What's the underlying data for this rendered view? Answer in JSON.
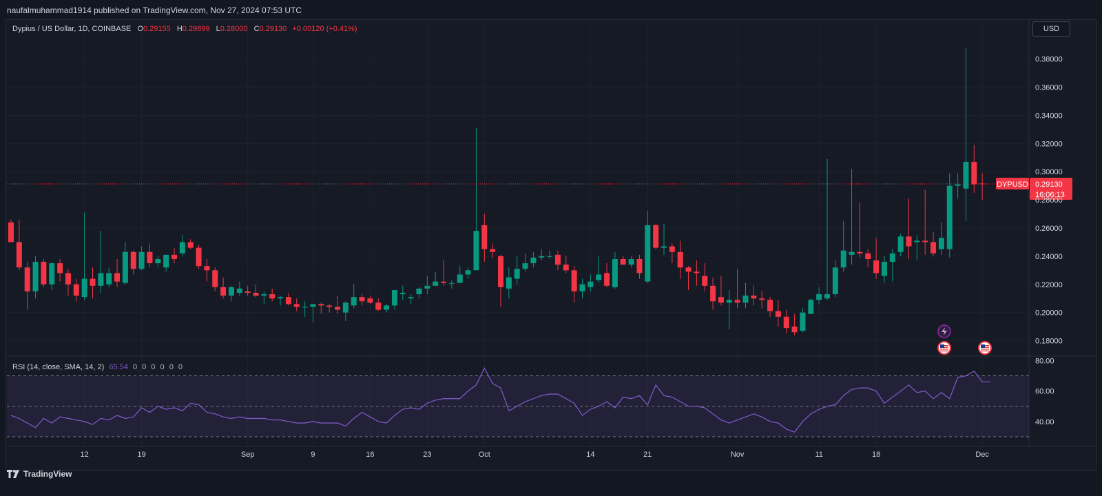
{
  "header": {
    "published": "naufalmuhammad1914 published on TradingView.com, Nov 27, 2024 07:53 UTC"
  },
  "legend": {
    "title": "Dypius / US Dollar, 1D, COINBASE",
    "o_label": "O",
    "o_value": "0.29155",
    "h_label": "H",
    "h_value": "0.29899",
    "l_label": "L",
    "l_value": "0.28000",
    "c_label": "C",
    "c_value": "0.29130",
    "change": "+0.00120 (+0.41%)"
  },
  "rsi_legend": {
    "title": "RSI (14, close, SMA, 14, 2)",
    "value": "65.54",
    "zeros": [
      "0",
      "0",
      "0",
      "0",
      "0",
      "0"
    ]
  },
  "currency_button": "USD",
  "price_tag": {
    "symbol": "DYPUSD",
    "price": "0.29130",
    "countdown": "16:06:13"
  },
  "footer": {
    "brand": "TradingView"
  },
  "colors": {
    "up": "#089981",
    "down": "#f23645",
    "rsi": "#7e57c2",
    "background": "#161a25"
  },
  "icons": [
    "lightning-icon",
    "us-flag-icon",
    "us-flag-icon"
  ],
  "chart_data": [
    {
      "type": "candlestick",
      "title": "Dypius / US Dollar, 1D, COINBASE",
      "ylim": [
        0.17,
        0.395
      ],
      "y_ticks": [
        "0.38000",
        "0.36000",
        "0.34000",
        "0.32000",
        "0.30000",
        "0.28000",
        "0.26000",
        "0.24000",
        "0.22000",
        "0.20000",
        "0.18000"
      ],
      "x_ticks": [
        {
          "label": "12",
          "index": 9
        },
        {
          "label": "19",
          "index": 16
        },
        {
          "label": "Sep",
          "index": 29
        },
        {
          "label": "9",
          "index": 37
        },
        {
          "label": "16",
          "index": 44
        },
        {
          "label": "23",
          "index": 51
        },
        {
          "label": "Oct",
          "index": 58
        },
        {
          "label": "14",
          "index": 71
        },
        {
          "label": "21",
          "index": 78
        },
        {
          "label": "Nov",
          "index": 89
        },
        {
          "label": "11",
          "index": 99
        },
        {
          "label": "18",
          "index": 106
        },
        {
          "label": "Dec",
          "index": 119
        }
      ],
      "last_price": 0.2913,
      "series": [
        {
          "o": 0.264,
          "h": 0.266,
          "l": 0.25,
          "c": 0.25
        },
        {
          "o": 0.25,
          "h": 0.266,
          "l": 0.23,
          "c": 0.232
        },
        {
          "o": 0.232,
          "h": 0.236,
          "l": 0.202,
          "c": 0.215
        },
        {
          "o": 0.215,
          "h": 0.24,
          "l": 0.21,
          "c": 0.236
        },
        {
          "o": 0.236,
          "h": 0.238,
          "l": 0.218,
          "c": 0.22
        },
        {
          "o": 0.22,
          "h": 0.236,
          "l": 0.216,
          "c": 0.235
        },
        {
          "o": 0.235,
          "h": 0.238,
          "l": 0.222,
          "c": 0.228
        },
        {
          "o": 0.228,
          "h": 0.231,
          "l": 0.212,
          "c": 0.22
        },
        {
          "o": 0.22,
          "h": 0.224,
          "l": 0.208,
          "c": 0.212
        },
        {
          "o": 0.211,
          "h": 0.271,
          "l": 0.209,
          "c": 0.224
        },
        {
          "o": 0.224,
          "h": 0.232,
          "l": 0.21,
          "c": 0.219
        },
        {
          "o": 0.219,
          "h": 0.258,
          "l": 0.214,
          "c": 0.228
        },
        {
          "o": 0.22,
          "h": 0.232,
          "l": 0.218,
          "c": 0.228
        },
        {
          "o": 0.228,
          "h": 0.238,
          "l": 0.218,
          "c": 0.222
        },
        {
          "o": 0.221,
          "h": 0.25,
          "l": 0.22,
          "c": 0.243
        },
        {
          "o": 0.243,
          "h": 0.244,
          "l": 0.227,
          "c": 0.231
        },
        {
          "o": 0.231,
          "h": 0.247,
          "l": 0.23,
          "c": 0.243
        },
        {
          "o": 0.243,
          "h": 0.249,
          "l": 0.232,
          "c": 0.235
        },
        {
          "o": 0.235,
          "h": 0.24,
          "l": 0.232,
          "c": 0.238
        },
        {
          "o": 0.232,
          "h": 0.241,
          "l": 0.229,
          "c": 0.241
        },
        {
          "o": 0.241,
          "h": 0.246,
          "l": 0.235,
          "c": 0.238
        },
        {
          "o": 0.242,
          "h": 0.255,
          "l": 0.24,
          "c": 0.25
        },
        {
          "o": 0.25,
          "h": 0.252,
          "l": 0.245,
          "c": 0.246
        },
        {
          "o": 0.246,
          "h": 0.248,
          "l": 0.231,
          "c": 0.233
        },
        {
          "o": 0.233,
          "h": 0.238,
          "l": 0.222,
          "c": 0.23
        },
        {
          "o": 0.23,
          "h": 0.232,
          "l": 0.215,
          "c": 0.218
        },
        {
          "o": 0.218,
          "h": 0.225,
          "l": 0.21,
          "c": 0.212
        },
        {
          "o": 0.212,
          "h": 0.219,
          "l": 0.208,
          "c": 0.218
        },
        {
          "o": 0.214,
          "h": 0.222,
          "l": 0.212,
          "c": 0.217
        },
        {
          "o": 0.215,
          "h": 0.219,
          "l": 0.212,
          "c": 0.214
        },
        {
          "o": 0.214,
          "h": 0.22,
          "l": 0.211,
          "c": 0.212
        },
        {
          "o": 0.212,
          "h": 0.215,
          "l": 0.206,
          "c": 0.213
        },
        {
          "o": 0.213,
          "h": 0.217,
          "l": 0.208,
          "c": 0.21
        },
        {
          "o": 0.21,
          "h": 0.212,
          "l": 0.205,
          "c": 0.211
        },
        {
          "o": 0.211,
          "h": 0.214,
          "l": 0.205,
          "c": 0.206
        },
        {
          "o": 0.206,
          "h": 0.21,
          "l": 0.201,
          "c": 0.204
        },
        {
          "o": 0.204,
          "h": 0.208,
          "l": 0.197,
          "c": 0.204
        },
        {
          "o": 0.204,
          "h": 0.206,
          "l": 0.193,
          "c": 0.206
        },
        {
          "o": 0.206,
          "h": 0.207,
          "l": 0.199,
          "c": 0.205
        },
        {
          "o": 0.205,
          "h": 0.206,
          "l": 0.2,
          "c": 0.204
        },
        {
          "o": 0.204,
          "h": 0.212,
          "l": 0.199,
          "c": 0.202
        },
        {
          "o": 0.2,
          "h": 0.208,
          "l": 0.194,
          "c": 0.207
        },
        {
          "o": 0.205,
          "h": 0.22,
          "l": 0.203,
          "c": 0.211
        },
        {
          "o": 0.211,
          "h": 0.213,
          "l": 0.205,
          "c": 0.208
        },
        {
          "o": 0.21,
          "h": 0.212,
          "l": 0.206,
          "c": 0.207
        },
        {
          "o": 0.207,
          "h": 0.21,
          "l": 0.201,
          "c": 0.202
        },
        {
          "o": 0.202,
          "h": 0.206,
          "l": 0.2,
          "c": 0.205
        },
        {
          "o": 0.205,
          "h": 0.216,
          "l": 0.202,
          "c": 0.216
        },
        {
          "o": 0.213,
          "h": 0.219,
          "l": 0.209,
          "c": 0.214
        },
        {
          "o": 0.21,
          "h": 0.213,
          "l": 0.206,
          "c": 0.211
        },
        {
          "o": 0.213,
          "h": 0.218,
          "l": 0.21,
          "c": 0.217
        },
        {
          "o": 0.217,
          "h": 0.226,
          "l": 0.213,
          "c": 0.219
        },
        {
          "o": 0.219,
          "h": 0.229,
          "l": 0.219,
          "c": 0.222
        },
        {
          "o": 0.222,
          "h": 0.237,
          "l": 0.219,
          "c": 0.221
        },
        {
          "o": 0.221,
          "h": 0.223,
          "l": 0.217,
          "c": 0.221
        },
        {
          "o": 0.221,
          "h": 0.233,
          "l": 0.221,
          "c": 0.227
        },
        {
          "o": 0.227,
          "h": 0.232,
          "l": 0.224,
          "c": 0.23
        },
        {
          "o": 0.23,
          "h": 0.331,
          "l": 0.23,
          "c": 0.258
        },
        {
          "o": 0.262,
          "h": 0.27,
          "l": 0.236,
          "c": 0.245
        },
        {
          "o": 0.245,
          "h": 0.249,
          "l": 0.239,
          "c": 0.243
        },
        {
          "o": 0.24,
          "h": 0.241,
          "l": 0.204,
          "c": 0.218
        },
        {
          "o": 0.217,
          "h": 0.232,
          "l": 0.21,
          "c": 0.225
        },
        {
          "o": 0.224,
          "h": 0.24,
          "l": 0.22,
          "c": 0.231
        },
        {
          "o": 0.231,
          "h": 0.242,
          "l": 0.229,
          "c": 0.235
        },
        {
          "o": 0.235,
          "h": 0.243,
          "l": 0.232,
          "c": 0.239
        },
        {
          "o": 0.239,
          "h": 0.245,
          "l": 0.237,
          "c": 0.24
        },
        {
          "o": 0.24,
          "h": 0.244,
          "l": 0.238,
          "c": 0.24
        },
        {
          "o": 0.241,
          "h": 0.244,
          "l": 0.23,
          "c": 0.234
        },
        {
          "o": 0.234,
          "h": 0.24,
          "l": 0.228,
          "c": 0.23
        },
        {
          "o": 0.23,
          "h": 0.233,
          "l": 0.207,
          "c": 0.215
        },
        {
          "o": 0.215,
          "h": 0.224,
          "l": 0.21,
          "c": 0.22
        },
        {
          "o": 0.218,
          "h": 0.227,
          "l": 0.215,
          "c": 0.222
        },
        {
          "o": 0.223,
          "h": 0.24,
          "l": 0.221,
          "c": 0.227
        },
        {
          "o": 0.228,
          "h": 0.235,
          "l": 0.218,
          "c": 0.219
        },
        {
          "o": 0.218,
          "h": 0.243,
          "l": 0.217,
          "c": 0.238
        },
        {
          "o": 0.238,
          "h": 0.24,
          "l": 0.234,
          "c": 0.234
        },
        {
          "o": 0.234,
          "h": 0.24,
          "l": 0.232,
          "c": 0.238
        },
        {
          "o": 0.238,
          "h": 0.241,
          "l": 0.224,
          "c": 0.228
        },
        {
          "o": 0.222,
          "h": 0.272,
          "l": 0.221,
          "c": 0.262
        },
        {
          "o": 0.262,
          "h": 0.263,
          "l": 0.245,
          "c": 0.246
        },
        {
          "o": 0.246,
          "h": 0.263,
          "l": 0.241,
          "c": 0.247
        },
        {
          "o": 0.247,
          "h": 0.249,
          "l": 0.235,
          "c": 0.243
        },
        {
          "o": 0.243,
          "h": 0.251,
          "l": 0.224,
          "c": 0.232
        },
        {
          "o": 0.232,
          "h": 0.233,
          "l": 0.216,
          "c": 0.229
        },
        {
          "o": 0.229,
          "h": 0.237,
          "l": 0.219,
          "c": 0.228
        },
        {
          "o": 0.226,
          "h": 0.235,
          "l": 0.215,
          "c": 0.219
        },
        {
          "o": 0.219,
          "h": 0.225,
          "l": 0.202,
          "c": 0.208
        },
        {
          "o": 0.211,
          "h": 0.226,
          "l": 0.205,
          "c": 0.207
        },
        {
          "o": 0.207,
          "h": 0.216,
          "l": 0.188,
          "c": 0.209
        },
        {
          "o": 0.209,
          "h": 0.231,
          "l": 0.203,
          "c": 0.207
        },
        {
          "o": 0.207,
          "h": 0.221,
          "l": 0.203,
          "c": 0.212
        },
        {
          "o": 0.212,
          "h": 0.219,
          "l": 0.205,
          "c": 0.21
        },
        {
          "o": 0.21,
          "h": 0.215,
          "l": 0.203,
          "c": 0.209
        },
        {
          "o": 0.209,
          "h": 0.211,
          "l": 0.197,
          "c": 0.201
        },
        {
          "o": 0.201,
          "h": 0.209,
          "l": 0.19,
          "c": 0.197
        },
        {
          "o": 0.197,
          "h": 0.202,
          "l": 0.185,
          "c": 0.189
        },
        {
          "o": 0.19,
          "h": 0.199,
          "l": 0.184,
          "c": 0.186
        },
        {
          "o": 0.187,
          "h": 0.203,
          "l": 0.186,
          "c": 0.2
        },
        {
          "o": 0.199,
          "h": 0.21,
          "l": 0.199,
          "c": 0.209
        },
        {
          "o": 0.209,
          "h": 0.218,
          "l": 0.206,
          "c": 0.213
        },
        {
          "o": 0.21,
          "h": 0.309,
          "l": 0.209,
          "c": 0.213
        },
        {
          "o": 0.213,
          "h": 0.237,
          "l": 0.211,
          "c": 0.232
        },
        {
          "o": 0.232,
          "h": 0.265,
          "l": 0.229,
          "c": 0.244
        },
        {
          "o": 0.241,
          "h": 0.302,
          "l": 0.234,
          "c": 0.243
        },
        {
          "o": 0.243,
          "h": 0.278,
          "l": 0.239,
          "c": 0.242
        },
        {
          "o": 0.242,
          "h": 0.245,
          "l": 0.232,
          "c": 0.238
        },
        {
          "o": 0.237,
          "h": 0.253,
          "l": 0.224,
          "c": 0.228
        },
        {
          "o": 0.226,
          "h": 0.24,
          "l": 0.221,
          "c": 0.236
        },
        {
          "o": 0.236,
          "h": 0.245,
          "l": 0.222,
          "c": 0.242
        },
        {
          "o": 0.243,
          "h": 0.256,
          "l": 0.24,
          "c": 0.254
        },
        {
          "o": 0.254,
          "h": 0.281,
          "l": 0.238,
          "c": 0.247
        },
        {
          "o": 0.25,
          "h": 0.255,
          "l": 0.237,
          "c": 0.251
        },
        {
          "o": 0.251,
          "h": 0.287,
          "l": 0.241,
          "c": 0.25
        },
        {
          "o": 0.25,
          "h": 0.257,
          "l": 0.24,
          "c": 0.242
        },
        {
          "o": 0.245,
          "h": 0.264,
          "l": 0.241,
          "c": 0.253
        },
        {
          "o": 0.245,
          "h": 0.299,
          "l": 0.239,
          "c": 0.29
        },
        {
          "o": 0.29,
          "h": 0.299,
          "l": 0.281,
          "c": 0.291
        },
        {
          "o": 0.288,
          "h": 0.388,
          "l": 0.265,
          "c": 0.307
        },
        {
          "o": 0.307,
          "h": 0.319,
          "l": 0.285,
          "c": 0.291
        },
        {
          "o": 0.2916,
          "h": 0.299,
          "l": 0.28,
          "c": 0.2913
        }
      ]
    },
    {
      "type": "line",
      "title": "RSI (14, close, SMA, 14, 2)",
      "ylim": [
        25,
        82
      ],
      "y_ticks": [
        "80.00",
        "60.00",
        "40.00"
      ],
      "bands": [
        30,
        50,
        70
      ],
      "last_value": 65.54,
      "values": [
        44,
        42,
        39,
        36,
        42,
        39,
        43,
        42,
        41,
        40,
        38,
        42,
        41,
        44,
        42,
        43,
        49,
        46,
        50,
        48,
        49,
        47,
        52,
        51,
        46,
        45,
        43,
        42,
        43,
        42,
        42,
        42,
        41,
        41,
        40,
        39,
        39,
        40,
        39,
        39,
        39,
        37,
        42,
        46,
        43,
        40,
        39,
        44,
        48,
        49,
        48,
        52,
        54,
        55,
        55,
        55,
        60,
        64,
        75,
        65,
        62,
        47,
        50,
        53,
        55,
        57,
        58,
        58,
        55,
        52,
        44,
        48,
        50,
        53,
        49,
        56,
        55,
        57,
        51,
        64,
        57,
        56,
        53,
        50,
        50,
        49,
        45,
        41,
        39,
        41,
        43,
        45,
        43,
        40,
        39,
        35,
        33,
        40,
        45,
        48,
        50,
        51,
        57,
        61,
        62,
        62,
        60,
        52,
        56,
        60,
        64,
        59,
        60,
        55,
        59,
        55,
        69,
        70,
        73,
        66,
        66
      ]
    }
  ]
}
